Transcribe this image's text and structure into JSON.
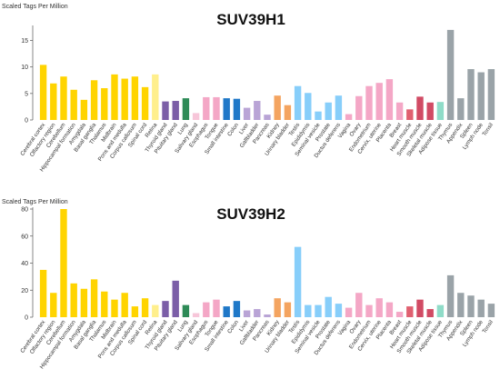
{
  "chart_data": [
    {
      "type": "bar",
      "title": "SUV39H1",
      "ylabel": "Scaled Tags Per Million",
      "ylim": [
        0,
        17.5
      ],
      "yticks": [
        0,
        5,
        10,
        15
      ],
      "grid": false,
      "categories": [
        "Cerebral cortex",
        "Olfactory region",
        "Cerebellum",
        "Hippocampal formation",
        "Amygdala",
        "Basal ganglia",
        "Thalamus",
        "Midbrain",
        "Pons and medulla",
        "Corpus callosum",
        "Spinal cord",
        "Retina",
        "Thyroid gland",
        "Pituitary gland",
        "Lung",
        "Salivary gland",
        "Esophagus",
        "Tongue",
        "Small intestine",
        "Colon",
        "Liver",
        "Gallbladder",
        "Pancreas",
        "Kidney",
        "Urinary bladder",
        "Testis",
        "Epididymis",
        "Seminal vesicle",
        "Prostate",
        "Ductus deferens",
        "Vagina",
        "Ovary",
        "Endometrium",
        "Cervix, uterine",
        "Placenta",
        "Breast",
        "Heart muscle",
        "Smooth muscle",
        "Skeletal muscle",
        "Adipose tissue",
        "Thymus",
        "Appendix",
        "Spleen",
        "Lymph node",
        "Tonsil"
      ],
      "values": [
        10.4,
        6.9,
        8.2,
        5.7,
        3.8,
        7.5,
        6.0,
        8.6,
        7.8,
        8.2,
        6.2,
        8.6,
        3.5,
        3.6,
        4.1,
        1.3,
        4.3,
        4.3,
        4.1,
        4.0,
        2.3,
        3.6,
        1.0,
        4.6,
        2.8,
        6.4,
        5.1,
        1.6,
        3.3,
        4.6,
        1.1,
        4.5,
        6.4,
        7.0,
        7.7,
        3.3,
        2.0,
        4.4,
        3.3,
        3.4,
        17.0,
        4.1,
        9.6,
        9.0,
        9.6
      ],
      "colors": [
        "#ffd400",
        "#ffd400",
        "#ffd400",
        "#ffd400",
        "#ffd400",
        "#ffd400",
        "#ffd400",
        "#ffd400",
        "#ffd400",
        "#ffd400",
        "#ffd400",
        "#ffef8c",
        "#7b5ea7",
        "#7b5ea7",
        "#2e8b57",
        "#f7c6d9",
        "#f4a7c6",
        "#f4a7c6",
        "#1f78c8",
        "#1f78c8",
        "#b9a4d6",
        "#b9a4d6",
        "#b9a4d6",
        "#f4a460",
        "#f4a460",
        "#87cefa",
        "#87cefa",
        "#87cefa",
        "#87cefa",
        "#87cefa",
        "#f4a7c6",
        "#f4a7c6",
        "#f4a7c6",
        "#f4a7c6",
        "#f4a7c6",
        "#f4a7c6",
        "#e06070",
        "#d14b64",
        "#d14b64",
        "#8fdcc8",
        "#9aa3a8",
        "#9aa3a8",
        "#9aa3a8",
        "#9aa3a8",
        "#9aa3a8"
      ]
    },
    {
      "type": "bar",
      "title": "SUV39H2",
      "ylabel": "Scaled Tags Per Million",
      "ylim": [
        0,
        80
      ],
      "yticks": [
        0,
        20,
        40,
        60,
        80
      ],
      "grid": false,
      "categories": [
        "Cerebral cortex",
        "Olfactory region",
        "Cerebellum",
        "Hippocampal formation",
        "Amygdala",
        "Basal ganglia",
        "Thalamus",
        "Midbrain",
        "Pons and medulla",
        "Corpus callosum",
        "Spinal cord",
        "Retina",
        "Thyroid gland",
        "Pituitary gland",
        "Lung",
        "Salivary gland",
        "Esophagus",
        "Tongue",
        "Small intestine",
        "Colon",
        "Liver",
        "Gallbladder",
        "Pancreas",
        "Kidney",
        "Urinary bladder",
        "Testis",
        "Epididymis",
        "Seminal vesicle",
        "Prostate",
        "Ductus deferens",
        "Vagina",
        "Ovary",
        "Endometrium",
        "Cervix, uterine",
        "Placenta",
        "Breast",
        "Heart muscle",
        "Smooth muscle",
        "Skeletal muscle",
        "Adipose tissue",
        "Thymus",
        "Appendix",
        "Spleen",
        "Lymph node",
        "Tonsil"
      ],
      "values": [
        35,
        18,
        80,
        25,
        21,
        28,
        19,
        13,
        18,
        8,
        14,
        9,
        12,
        27,
        9,
        3,
        11,
        13,
        8,
        12,
        5,
        6,
        2,
        14,
        11,
        52,
        9,
        9,
        15,
        10,
        7,
        18,
        9,
        14,
        11,
        4,
        8,
        13,
        6,
        9,
        31,
        18,
        16,
        13,
        10
      ],
      "colors": [
        "#ffd400",
        "#ffd400",
        "#ffd400",
        "#ffd400",
        "#ffd400",
        "#ffd400",
        "#ffd400",
        "#ffd400",
        "#ffd400",
        "#ffd400",
        "#ffd400",
        "#ffef8c",
        "#7b5ea7",
        "#7b5ea7",
        "#2e8b57",
        "#f7c6d9",
        "#f4a7c6",
        "#f4a7c6",
        "#1f78c8",
        "#1f78c8",
        "#b9a4d6",
        "#b9a4d6",
        "#b9a4d6",
        "#f4a460",
        "#f4a460",
        "#87cefa",
        "#87cefa",
        "#87cefa",
        "#87cefa",
        "#87cefa",
        "#f4a7c6",
        "#f4a7c6",
        "#f4a7c6",
        "#f4a7c6",
        "#f4a7c6",
        "#f4a7c6",
        "#e06070",
        "#d14b64",
        "#d14b64",
        "#8fdcc8",
        "#9aa3a8",
        "#9aa3a8",
        "#9aa3a8",
        "#9aa3a8",
        "#9aa3a8"
      ]
    }
  ]
}
